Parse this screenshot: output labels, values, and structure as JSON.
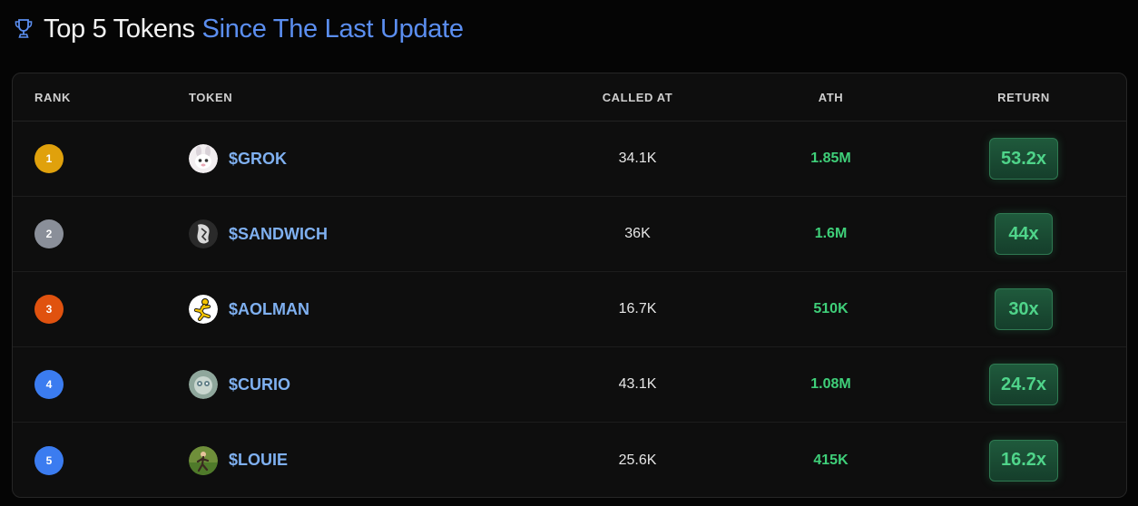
{
  "header": {
    "title_main": "Top 5 Tokens",
    "title_accent": "Since The Last Update",
    "icon": "trophy-icon"
  },
  "table": {
    "columns": {
      "rank": "RANK",
      "token": "TOKEN",
      "called_at": "CALLED AT",
      "ath": "ATH",
      "return": "RETURN"
    },
    "rows": [
      {
        "rank": "1",
        "rank_color": "#e0a10c",
        "token": "$GROK",
        "avatar": "grok-avatar",
        "called_at": "34.1K",
        "ath": "1.85M",
        "return": "53.2x"
      },
      {
        "rank": "2",
        "rank_color": "#8a8f99",
        "token": "$SANDWICH",
        "avatar": "sandwich-avatar",
        "called_at": "36K",
        "ath": "1.6M",
        "return": "44x"
      },
      {
        "rank": "3",
        "rank_color": "#e0520f",
        "token": "$AOLMAN",
        "avatar": "aolman-avatar",
        "called_at": "16.7K",
        "ath": "510K",
        "return": "30x"
      },
      {
        "rank": "4",
        "rank_color": "#3b7cf0",
        "token": "$CURIO",
        "avatar": "curio-avatar",
        "called_at": "43.1K",
        "ath": "1.08M",
        "return": "24.7x"
      },
      {
        "rank": "5",
        "rank_color": "#3b7cf0",
        "token": "$LOUIE",
        "avatar": "louie-avatar",
        "called_at": "25.6K",
        "ath": "415K",
        "return": "16.2x"
      }
    ]
  },
  "colors": {
    "accent_blue": "#5b8ef0",
    "token_blue": "#7fb0f0",
    "ath_green": "#3fcf79",
    "return_green": "#4fd48a"
  }
}
